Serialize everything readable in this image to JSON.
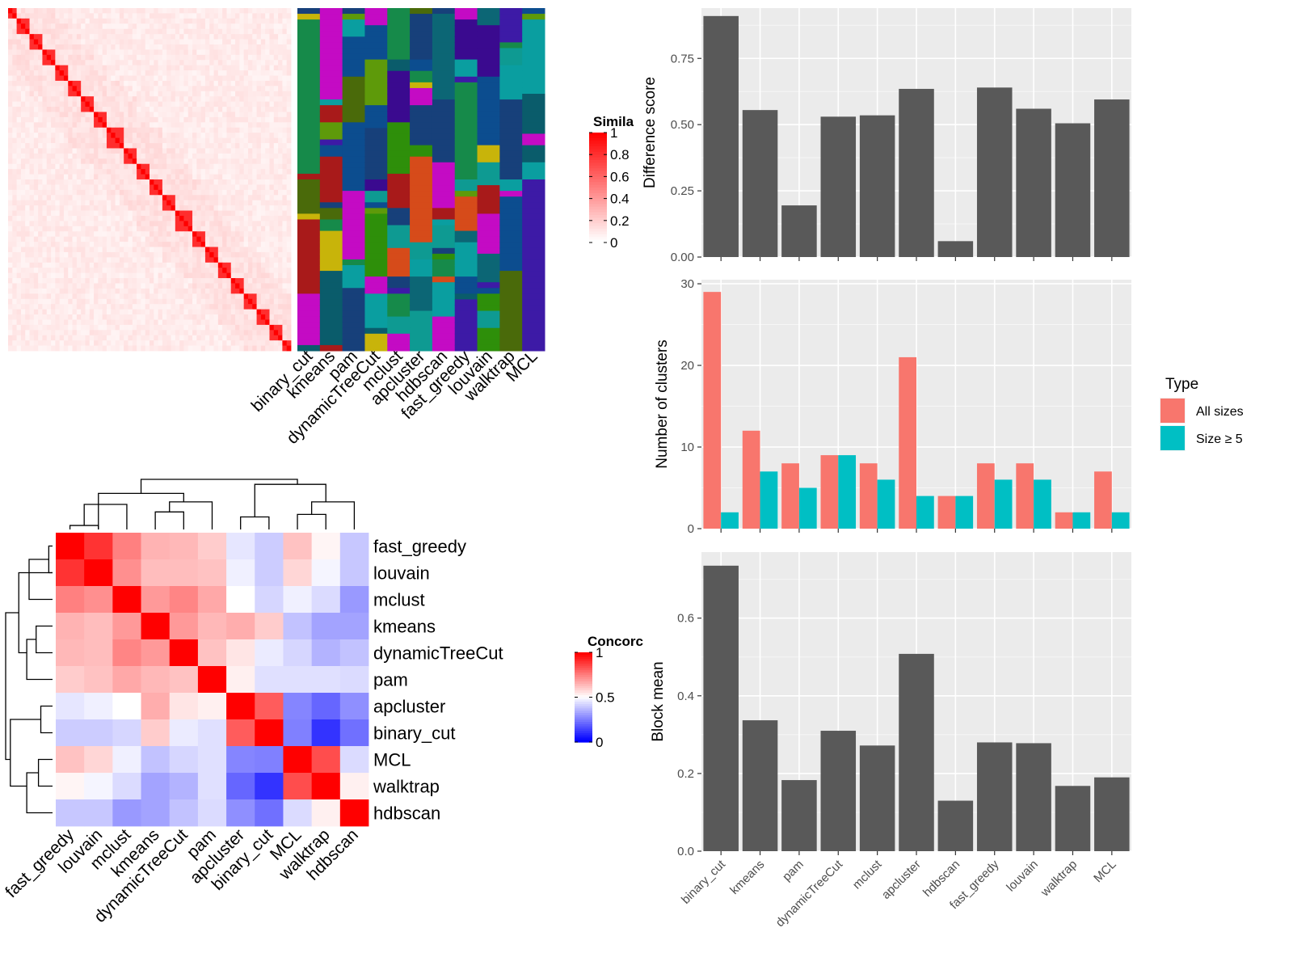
{
  "chart_data": [
    {
      "type": "heatmap",
      "id": "similarity-heatmap",
      "legend": {
        "title": "Simila",
        "ticks": [
          "1",
          "0.8",
          "0.6",
          "0.4",
          "0.2",
          "0"
        ]
      },
      "block_sizes": [
        2,
        3,
        3,
        3,
        3,
        3,
        3,
        3,
        4,
        3,
        3,
        3,
        3,
        4,
        3,
        3,
        3,
        3,
        3,
        3,
        3,
        2
      ],
      "columns": [
        "binary_cut",
        "kmeans",
        "pam",
        "dynamicTreeCut",
        "mclust",
        "apcluster",
        "hdbscan",
        "fast_greedy",
        "louvain",
        "walktrap",
        "MCL"
      ],
      "diagonal_value": 1
    },
    {
      "type": "bar",
      "id": "difference-score",
      "ylabel": "Difference score",
      "categories": [
        "binary_cut",
        "kmeans",
        "pam",
        "dynamicTreeCut",
        "mclust",
        "apcluster",
        "hdbscan",
        "fast_greedy",
        "louvain",
        "walktrap",
        "MCL"
      ],
      "values": [
        0.91,
        0.555,
        0.195,
        0.53,
        0.535,
        0.635,
        0.06,
        0.64,
        0.56,
        0.505,
        0.595
      ],
      "ylim": [
        0,
        0.94
      ],
      "yticks": [
        "0.00",
        "0.25",
        "0.50",
        "0.75"
      ],
      "ytick_values": [
        0,
        0.25,
        0.5,
        0.75
      ],
      "color": "#595959"
    },
    {
      "type": "bar",
      "id": "number-of-clusters",
      "ylabel": "Number of clusters",
      "categories": [
        "binary_cut",
        "kmeans",
        "pam",
        "dynamicTreeCut",
        "mclust",
        "apcluster",
        "hdbscan",
        "fast_greedy",
        "louvain",
        "walktrap",
        "MCL"
      ],
      "series": [
        {
          "name": "All sizes",
          "values": [
            29,
            12,
            8,
            9,
            8,
            21,
            4,
            8,
            8,
            2,
            7
          ],
          "color": "#f8766d"
        },
        {
          "name": "Size ≥ 5",
          "values": [
            2,
            7,
            5,
            9,
            6,
            4,
            4,
            6,
            6,
            2,
            2
          ],
          "color": "#00bfc4"
        }
      ],
      "ylim": [
        0,
        30.5
      ],
      "yticks": [
        "0",
        "10",
        "20",
        "30"
      ],
      "ytick_values": [
        0,
        10,
        20,
        30
      ],
      "legend": {
        "title": "Type"
      }
    },
    {
      "type": "bar",
      "id": "block-mean",
      "ylabel": "Block mean",
      "categories": [
        "binary_cut",
        "kmeans",
        "pam",
        "dynamicTreeCut",
        "mclust",
        "apcluster",
        "hdbscan",
        "fast_greedy",
        "louvain",
        "walktrap",
        "MCL"
      ],
      "values": [
        0.735,
        0.337,
        0.183,
        0.31,
        0.272,
        0.508,
        0.13,
        0.28,
        0.278,
        0.168,
        0.19
      ],
      "ylim": [
        0,
        0.77
      ],
      "yticks": [
        "0.0",
        "0.2",
        "0.4",
        "0.6"
      ],
      "ytick_values": [
        0,
        0.2,
        0.4,
        0.6
      ],
      "color": "#595959"
    },
    {
      "type": "heatmap",
      "id": "concordance-heatmap",
      "legend": {
        "title": "Concorc",
        "ticks": [
          "1",
          "0.5",
          "0"
        ]
      },
      "rows": [
        "fast_greedy",
        "louvain",
        "mclust",
        "kmeans",
        "dynamicTreeCut",
        "pam",
        "apcluster",
        "binary_cut",
        "MCL",
        "walktrap",
        "hdbscan"
      ],
      "columns": [
        "fast_greedy",
        "louvain",
        "mclust",
        "kmeans",
        "dynamicTreeCut",
        "pam",
        "apcluster",
        "binary_cut",
        "MCL",
        "walktrap",
        "hdbscan"
      ],
      "values": [
        [
          1.0,
          0.9,
          0.75,
          0.65,
          0.64,
          0.6,
          0.45,
          0.4,
          0.62,
          0.52,
          0.39
        ],
        [
          0.9,
          1.0,
          0.72,
          0.63,
          0.63,
          0.62,
          0.47,
          0.4,
          0.58,
          0.48,
          0.39
        ],
        [
          0.75,
          0.72,
          1.0,
          0.7,
          0.74,
          0.67,
          0.5,
          0.42,
          0.47,
          0.43,
          0.3
        ],
        [
          0.65,
          0.63,
          0.7,
          1.0,
          0.7,
          0.64,
          0.66,
          0.6,
          0.38,
          0.32,
          0.32
        ],
        [
          0.64,
          0.63,
          0.74,
          0.7,
          1.0,
          0.62,
          0.55,
          0.46,
          0.42,
          0.35,
          0.38
        ],
        [
          0.6,
          0.62,
          0.67,
          0.64,
          0.62,
          1.0,
          0.53,
          0.44,
          0.44,
          0.44,
          0.43
        ],
        [
          0.45,
          0.47,
          0.5,
          0.66,
          0.55,
          0.53,
          1.0,
          0.82,
          0.26,
          0.2,
          0.28
        ],
        [
          0.4,
          0.4,
          0.42,
          0.6,
          0.46,
          0.44,
          0.82,
          1.0,
          0.25,
          0.1,
          0.22
        ],
        [
          0.62,
          0.58,
          0.47,
          0.38,
          0.42,
          0.44,
          0.26,
          0.25,
          1.0,
          0.85,
          0.43
        ],
        [
          0.52,
          0.48,
          0.43,
          0.32,
          0.35,
          0.44,
          0.2,
          0.1,
          0.85,
          1.0,
          0.53
        ],
        [
          0.39,
          0.39,
          0.3,
          0.32,
          0.38,
          0.43,
          0.28,
          0.22,
          0.43,
          0.53,
          1.0
        ]
      ]
    }
  ]
}
